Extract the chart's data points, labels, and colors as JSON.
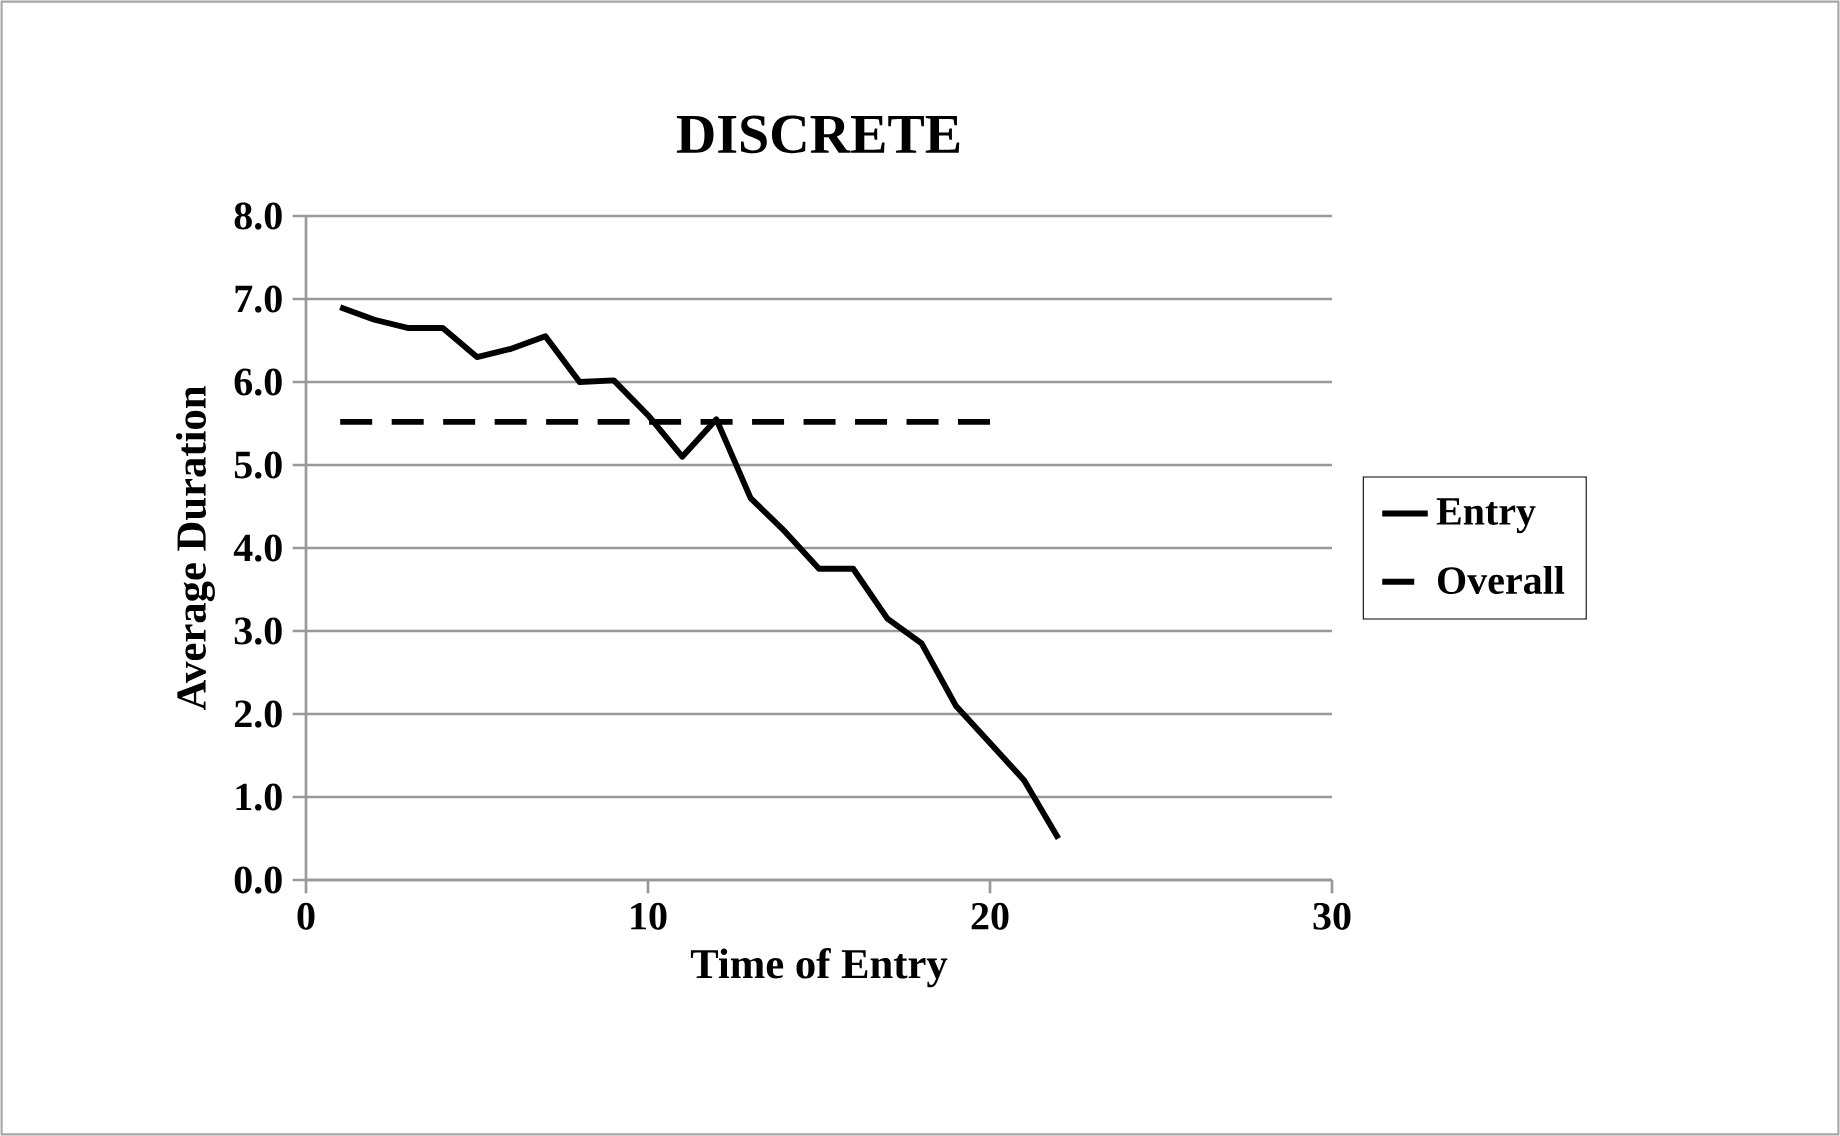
{
  "chart_data": {
    "type": "line",
    "title": "DISCRETE",
    "xlabel": "Time of Entry",
    "ylabel": "Average Duration",
    "xlim": [
      0,
      30
    ],
    "xticks": [
      0,
      10,
      20,
      30
    ],
    "ylim": [
      0,
      8
    ],
    "yticks": [
      {
        "value": 0,
        "label": "0.0"
      },
      {
        "value": 1,
        "label": "1.0"
      },
      {
        "value": 2,
        "label": "2.0"
      },
      {
        "value": 3,
        "label": "3.0"
      },
      {
        "value": 4,
        "label": "4.0"
      },
      {
        "value": 5,
        "label": "5.0"
      },
      {
        "value": 6,
        "label": "6.0"
      },
      {
        "value": 7,
        "label": "7.0"
      },
      {
        "value": 8,
        "label": "8.0"
      }
    ],
    "grid": "y",
    "legend": "right",
    "marker": "none",
    "series": [
      {
        "name": "Entry",
        "color": "#000000",
        "line_style": "solid",
        "x": [
          1,
          2,
          3,
          4,
          5,
          6,
          7,
          8,
          9,
          10,
          11,
          12,
          13,
          14,
          15,
          16,
          17,
          18,
          19,
          20,
          21,
          22
        ],
        "values": [
          6.9,
          6.75,
          6.65,
          6.65,
          6.3,
          6.4,
          6.55,
          6.0,
          6.02,
          5.6,
          5.1,
          5.55,
          4.6,
          4.2,
          3.75,
          3.75,
          3.15,
          2.85,
          2.1,
          1.65,
          1.2,
          0.5
        ]
      },
      {
        "name": "Overall",
        "color": "#000000",
        "line_style": "dashed",
        "x": [
          1,
          20
        ],
        "values": [
          5.52,
          5.52
        ]
      }
    ]
  }
}
